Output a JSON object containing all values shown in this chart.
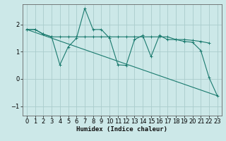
{
  "xlabel": "Humidex (Indice chaleur)",
  "bg_color": "#cce8e8",
  "grid_color": "#aacccc",
  "line_color": "#1a7a6e",
  "xlim": [
    -0.5,
    23.5
  ],
  "ylim": [
    -1.35,
    2.75
  ],
  "yticks": [
    -1,
    0,
    1,
    2
  ],
  "xticks": [
    0,
    1,
    2,
    3,
    4,
    5,
    6,
    7,
    8,
    9,
    10,
    11,
    12,
    13,
    14,
    15,
    16,
    17,
    18,
    19,
    20,
    21,
    22,
    23
  ],
  "series1_x": [
    0,
    1,
    2,
    3,
    4,
    5,
    6,
    7,
    8,
    9,
    10,
    11,
    12,
    13,
    14,
    15,
    16,
    17,
    18,
    19,
    20,
    21,
    22
  ],
  "series1_y": [
    1.82,
    1.82,
    1.65,
    1.55,
    1.55,
    1.55,
    1.55,
    1.55,
    1.55,
    1.55,
    1.55,
    1.55,
    1.55,
    1.55,
    1.55,
    1.55,
    1.55,
    1.55,
    1.45,
    1.45,
    1.42,
    1.38,
    1.32
  ],
  "series2_x": [
    0,
    1,
    2,
    3,
    4,
    5,
    6,
    7,
    8,
    9,
    10,
    11,
    12,
    13,
    14,
    15,
    16,
    17,
    18,
    19,
    20,
    21,
    22,
    23
  ],
  "series2_y": [
    1.82,
    1.82,
    1.65,
    1.55,
    0.52,
    1.18,
    1.5,
    2.6,
    1.82,
    1.82,
    1.5,
    0.52,
    0.5,
    1.45,
    1.6,
    0.82,
    1.6,
    1.45,
    1.45,
    1.38,
    1.35,
    1.05,
    0.05,
    -0.62
  ],
  "series3_x": [
    0,
    23
  ],
  "series3_y": [
    1.82,
    -0.62
  ],
  "font_size": 6.5,
  "tick_font_size": 6
}
